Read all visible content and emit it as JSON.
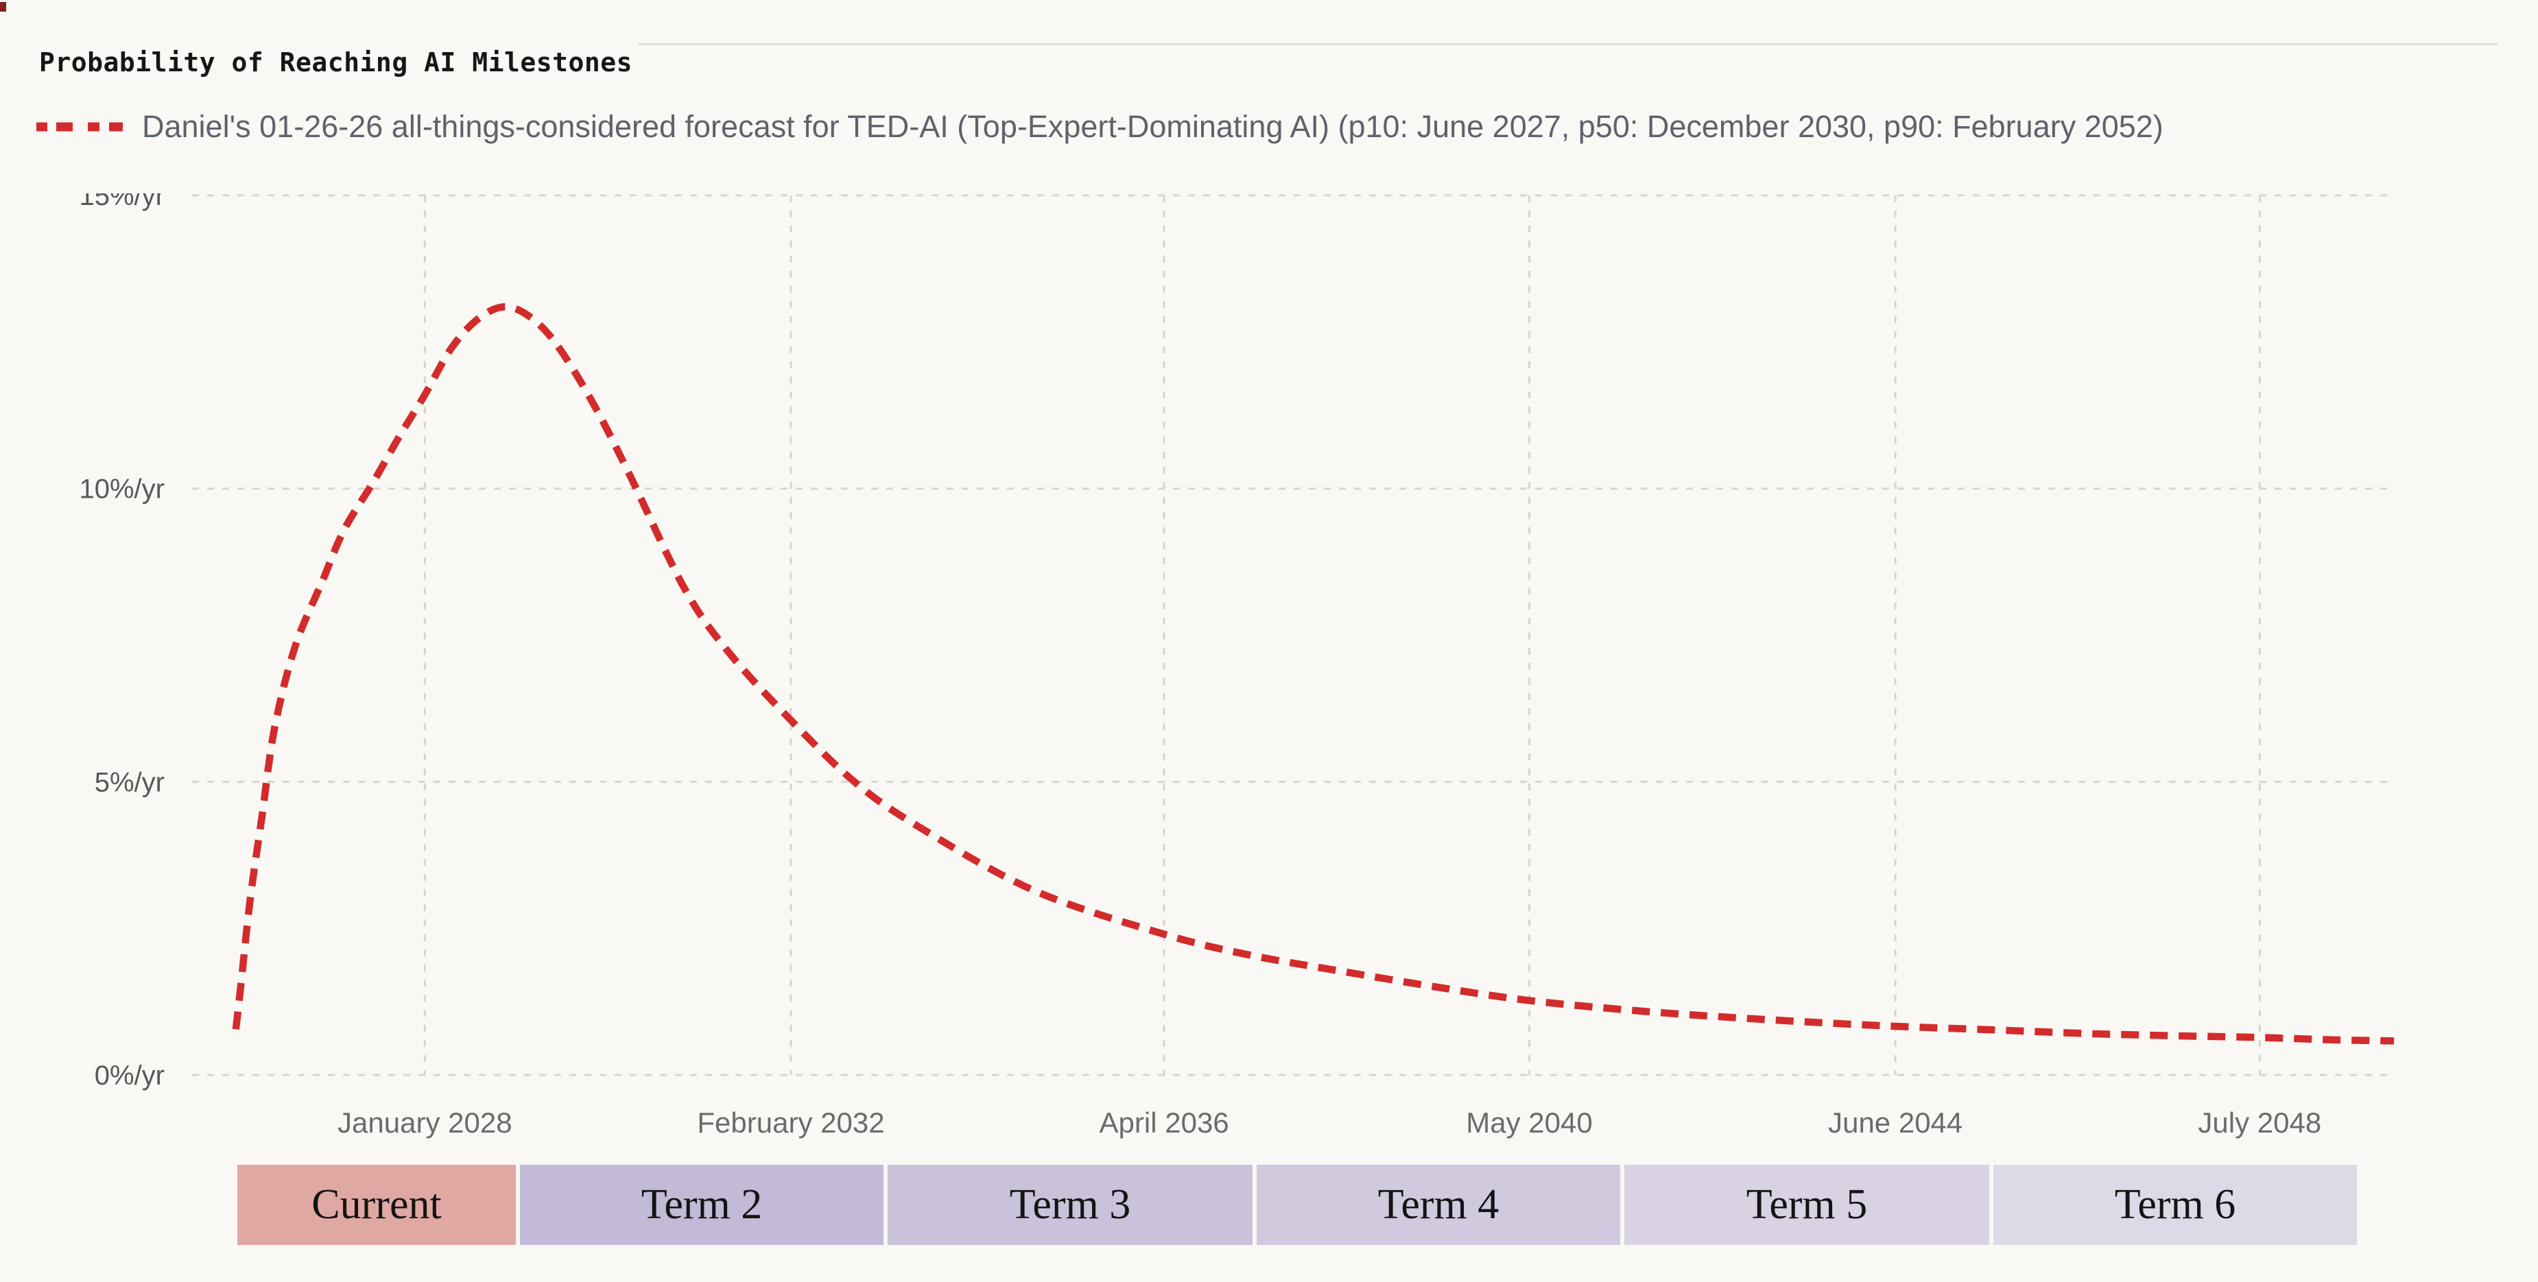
{
  "page": {
    "background": "#faf8f4",
    "edge_artifact_color": "#8a1f1f"
  },
  "header": {
    "title": "Probability of Reaching AI Milestones"
  },
  "legend": {
    "label": "Daniel's 01-26-26 all-things-considered forecast for TED-AI (Top-Expert-Dominating AI) (p10: June 2027, p50: December 2030, p90: February 2052)",
    "marker_color": "#d32b2b",
    "marker_style": "dashed"
  },
  "chart_data": {
    "type": "line",
    "title": "Probability of Reaching AI Milestones",
    "xlabel": "",
    "ylabel": "",
    "grid": true,
    "x_range": [
      2025.4,
      2050.0
    ],
    "y_range": [
      0,
      15
    ],
    "x_ticks": [
      {
        "t": 2028.0,
        "label": "January 2028"
      },
      {
        "t": 2032.09,
        "label": "February 2032"
      },
      {
        "t": 2036.26,
        "label": "April 2036"
      },
      {
        "t": 2040.34,
        "label": "May 2040"
      },
      {
        "t": 2044.43,
        "label": "June 2044"
      },
      {
        "t": 2048.5,
        "label": "July 2048"
      }
    ],
    "y_ticks": [
      {
        "v": 0,
        "label": "0%/yr"
      },
      {
        "v": 5,
        "label": "5%/yr"
      },
      {
        "v": 10,
        "label": "10%/yr"
      },
      {
        "v": 15,
        "label": "15%/yr"
      }
    ],
    "series": [
      {
        "name": "Daniel's 01-26-26 all-things-considered forecast for TED-AI (Top-Expert-Dominating AI) (p10: June 2027, p50: December 2030, p90: February 2052)",
        "color": "#d32b2b",
        "style": "dashed",
        "unit": "%/yr",
        "points": [
          [
            2025.89,
            0.78
          ],
          [
            2025.95,
            1.6
          ],
          [
            2026.05,
            3.0
          ],
          [
            2026.18,
            4.4
          ],
          [
            2026.32,
            5.9
          ],
          [
            2026.55,
            7.3
          ],
          [
            2026.85,
            8.4
          ],
          [
            2027.1,
            9.3
          ],
          [
            2027.42,
            10.1
          ],
          [
            2027.72,
            10.9
          ],
          [
            2028.0,
            11.6
          ],
          [
            2028.3,
            12.4
          ],
          [
            2028.6,
            12.9
          ],
          [
            2028.9,
            13.1
          ],
          [
            2029.2,
            12.9
          ],
          [
            2029.5,
            12.4
          ],
          [
            2029.9,
            11.4
          ],
          [
            2030.3,
            10.2
          ],
          [
            2030.9,
            8.3
          ],
          [
            2031.4,
            7.2
          ],
          [
            2032.09,
            6.05
          ],
          [
            2032.8,
            5.0
          ],
          [
            2033.5,
            4.25
          ],
          [
            2034.8,
            3.15
          ],
          [
            2036.26,
            2.4
          ],
          [
            2037.2,
            2.05
          ],
          [
            2038.2,
            1.78
          ],
          [
            2039.3,
            1.5
          ],
          [
            2040.34,
            1.27
          ],
          [
            2041.5,
            1.1
          ],
          [
            2042.5,
            0.99
          ],
          [
            2043.5,
            0.9
          ],
          [
            2044.43,
            0.83
          ],
          [
            2045.5,
            0.77
          ],
          [
            2046.5,
            0.71
          ],
          [
            2047.5,
            0.67
          ],
          [
            2048.5,
            0.64
          ],
          [
            2049.3,
            0.6
          ],
          [
            2050.0,
            0.58
          ]
        ]
      }
    ]
  },
  "terms": {
    "segments": [
      {
        "label": "Current",
        "start": 2025.88,
        "end": 2029.04,
        "color": "#e0a8a3"
      },
      {
        "label": "Term 2",
        "start": 2029.04,
        "end": 2033.15,
        "color": "#c3bad7"
      },
      {
        "label": "Term 3",
        "start": 2033.15,
        "end": 2037.27,
        "color": "#cac2da"
      },
      {
        "label": "Term 4",
        "start": 2037.27,
        "end": 2041.38,
        "color": "#d1cade"
      },
      {
        "label": "Term 5",
        "start": 2041.38,
        "end": 2045.5,
        "color": "#d8d2e3"
      },
      {
        "label": "Term 6",
        "start": 2045.5,
        "end": 2049.61,
        "color": "#ded9e7"
      }
    ]
  }
}
